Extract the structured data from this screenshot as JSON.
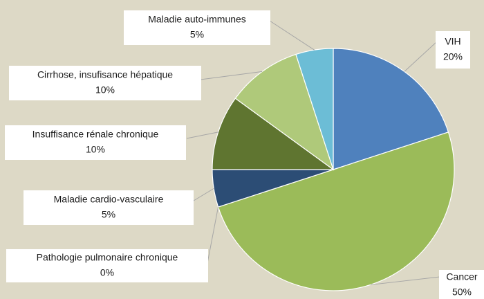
{
  "chart_data": {
    "type": "pie",
    "categories": [
      "VIH",
      "Cancer",
      "Pathologie pulmonaire chronique",
      "Maladie cardio-vasculaire",
      "Insuffisance rénale chronique",
      "Cirrhose, insufisance hépatique",
      "Maladie auto-immunes"
    ],
    "values": [
      20,
      50,
      0,
      5,
      10,
      10,
      5
    ],
    "value_labels": [
      "20%",
      "50%",
      "0%",
      "5%",
      "10%",
      "10%",
      "5%"
    ],
    "colors": [
      "#4f81bd",
      "#9bbb59",
      "#8064a2",
      "#2c4d75",
      "#5f7530",
      "#afc97a",
      "#6cbdd6"
    ]
  }
}
